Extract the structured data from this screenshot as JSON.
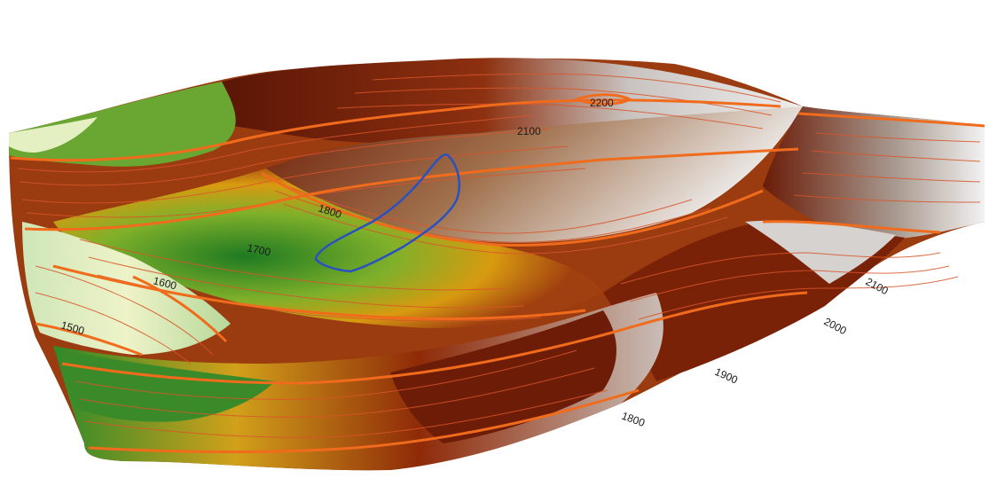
{
  "contour_labels": {
    "c2200": "2200",
    "c2100_top": "2100",
    "c1800_left": "1800",
    "c1700": "1700",
    "c1600": "1600",
    "c1500": "1500",
    "c2100_right": "2100",
    "c2000_right": "2000",
    "c1900_right": "1900",
    "c1800_right": "1800"
  },
  "colors": {
    "major_contour": "#f06b1c",
    "minor_contour": "#d9552a",
    "boundary_outline": "#2a52be",
    "low_elevation": "#e9f1c4",
    "mid_low": "#2e8a2a",
    "mid": "#d89a10",
    "high": "#6a1b06",
    "peak": "#e9e7e6"
  }
}
